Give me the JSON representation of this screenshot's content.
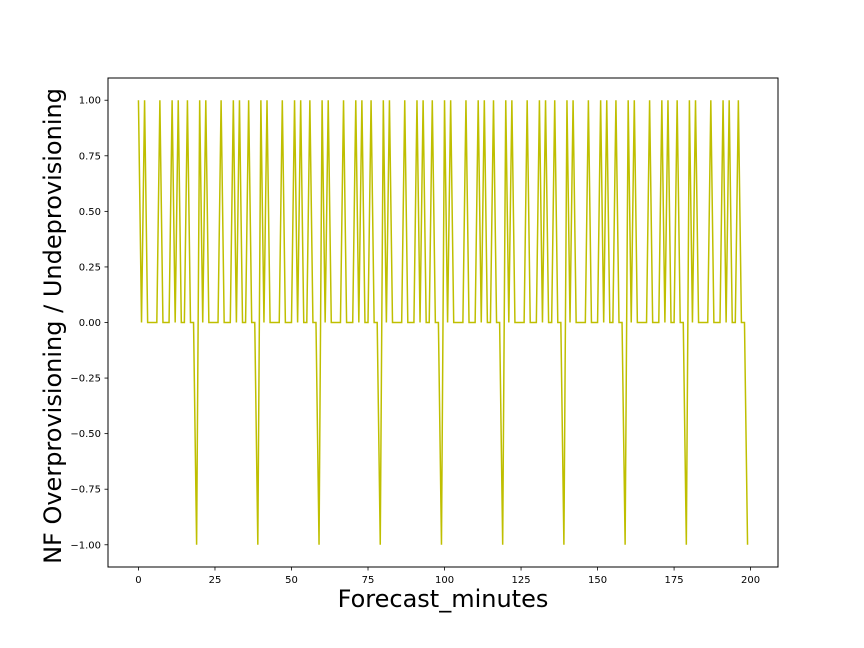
{
  "chart_data": {
    "type": "line",
    "xlabel": "Forecast_minutes",
    "ylabel": "NF Overprovisioning / Undeprovisioning",
    "xlim": [
      -9.95,
      208.95
    ],
    "ylim": [
      -1.1,
      1.1
    ],
    "x_ticks": [
      0,
      25,
      50,
      75,
      100,
      125,
      150,
      175,
      200
    ],
    "x_tick_labels": [
      "0",
      "25",
      "50",
      "75",
      "100",
      "125",
      "150",
      "175",
      "200"
    ],
    "y_ticks": [
      1.0,
      0.75,
      0.5,
      0.25,
      0.0,
      -0.25,
      -0.5,
      -0.75,
      -1.0
    ],
    "y_tick_labels": [
      "1.00",
      "0.75",
      "0.50",
      "0.25",
      "0.00",
      "−0.25",
      "−0.50",
      "−0.75",
      "−1.00"
    ],
    "grid": false,
    "legend": "none",
    "line_color": "#bfbf00",
    "series": [
      {
        "x": [
          0,
          1,
          2,
          3,
          4,
          5,
          6,
          7,
          8,
          9,
          10,
          11,
          12,
          13,
          14,
          15,
          16,
          17,
          18,
          19,
          20,
          21,
          22,
          23,
          24,
          25,
          26,
          27,
          28,
          29,
          30,
          31,
          32,
          33,
          34,
          35,
          36,
          37,
          38,
          39,
          40,
          41,
          42,
          43,
          44,
          45,
          46,
          47,
          48,
          49,
          50,
          51,
          52,
          53,
          54,
          55,
          56,
          57,
          58,
          59,
          60,
          61,
          62,
          63,
          64,
          65,
          66,
          67,
          68,
          69,
          70,
          71,
          72,
          73,
          74,
          75,
          76,
          77,
          78,
          79,
          80,
          81,
          82,
          83,
          84,
          85,
          86,
          87,
          88,
          89,
          90,
          91,
          92,
          93,
          94,
          95,
          96,
          97,
          98,
          99,
          100,
          101,
          102,
          103,
          104,
          105,
          106,
          107,
          108,
          109,
          110,
          111,
          112,
          113,
          114,
          115,
          116,
          117,
          118,
          119,
          120,
          121,
          122,
          123,
          124,
          125,
          126,
          127,
          128,
          129,
          130,
          131,
          132,
          133,
          134,
          135,
          136,
          137,
          138,
          139,
          140,
          141,
          142,
          143,
          144,
          145,
          146,
          147,
          148,
          149,
          150,
          151,
          152,
          153,
          154,
          155,
          156,
          157,
          158,
          159,
          160,
          161,
          162,
          163,
          164,
          165,
          166,
          167,
          168,
          169,
          170,
          171,
          172,
          173,
          174,
          175,
          176,
          177,
          178,
          179,
          180,
          181,
          182,
          183,
          184,
          185,
          186,
          187,
          188,
          189,
          190,
          191,
          192,
          193,
          194,
          195,
          196,
          197,
          198,
          199
        ],
        "y": [
          1,
          0,
          1,
          0,
          0,
          0,
          0,
          1,
          0,
          0,
          0,
          1,
          0,
          1,
          0,
          0,
          1,
          0,
          0,
          -1,
          1,
          0,
          1,
          0,
          0,
          0,
          0,
          1,
          0,
          0,
          0,
          1,
          0,
          1,
          0,
          0,
          1,
          0,
          0,
          -1,
          1,
          0,
          1,
          0,
          0,
          0,
          0,
          1,
          0,
          0,
          0,
          1,
          0,
          1,
          0,
          0,
          1,
          0,
          0,
          -1,
          1,
          0,
          1,
          0,
          0,
          0,
          0,
          1,
          0,
          0,
          0,
          1,
          0,
          1,
          0,
          0,
          1,
          0,
          0,
          -1,
          1,
          0,
          1,
          0,
          0,
          0,
          0,
          1,
          0,
          0,
          0,
          1,
          0,
          1,
          0,
          0,
          1,
          0,
          0,
          -1,
          1,
          0,
          1,
          0,
          0,
          0,
          0,
          1,
          0,
          0,
          0,
          1,
          0,
          1,
          0,
          0,
          1,
          0,
          0,
          -1,
          1,
          0,
          1,
          0,
          0,
          0,
          0,
          1,
          0,
          0,
          0,
          1,
          0,
          1,
          0,
          0,
          1,
          0,
          0,
          -1,
          1,
          0,
          1,
          0,
          0,
          0,
          0,
          1,
          0,
          0,
          0,
          1,
          0,
          1,
          0,
          0,
          1,
          0,
          0,
          -1,
          1,
          0,
          1,
          0,
          0,
          0,
          0,
          1,
          0,
          0,
          0,
          1,
          0,
          1,
          0,
          0,
          1,
          0,
          0,
          -1,
          1,
          0,
          1,
          0,
          0,
          0,
          0,
          1,
          0,
          0,
          0,
          1,
          0,
          1,
          0,
          0,
          1,
          0,
          0,
          -1
        ]
      }
    ]
  }
}
